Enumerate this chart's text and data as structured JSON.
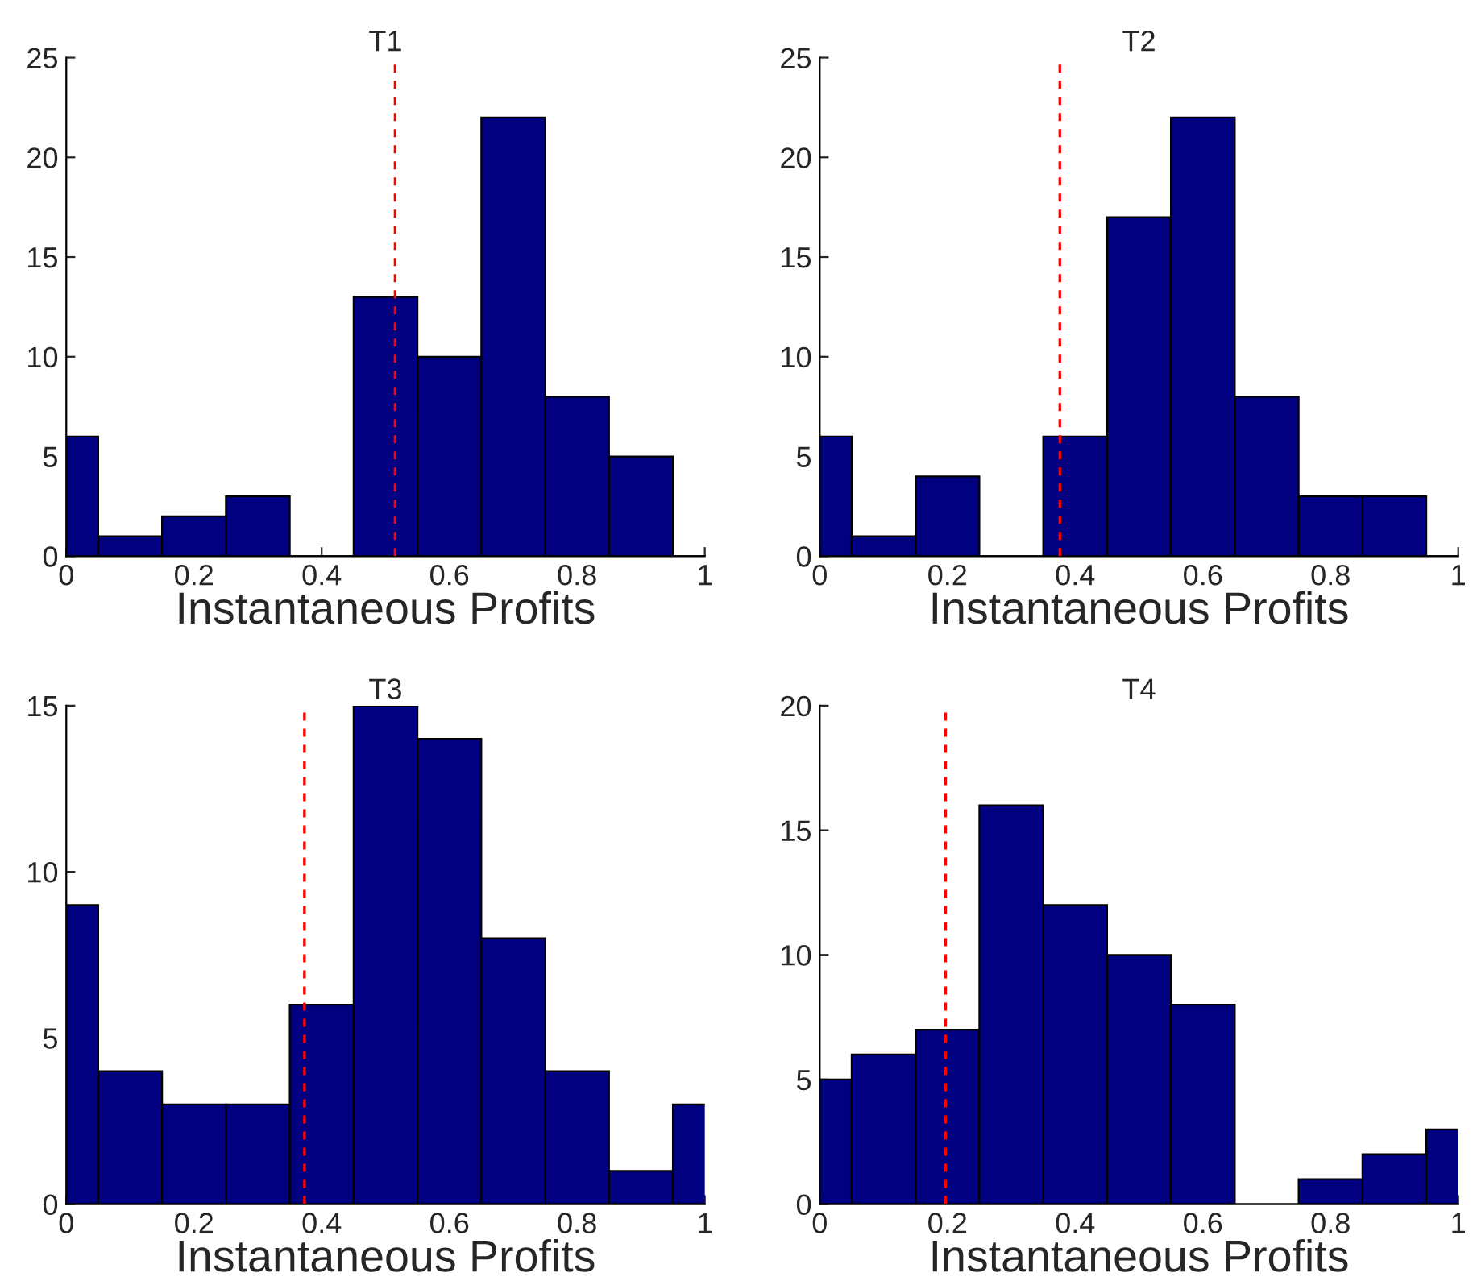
{
  "chart_data": [
    {
      "type": "histogram",
      "title": "T1",
      "xlabel": "Instantaneous Profits",
      "bins": [
        -0.05,
        0.05,
        0.15,
        0.25,
        0.35,
        0.45,
        0.55,
        0.65,
        0.75,
        0.85,
        0.95,
        1.05
      ],
      "values": [
        6,
        1,
        2,
        3,
        0,
        13,
        10,
        22,
        8,
        5,
        0
      ],
      "color": "#000080",
      "xlim": [
        0,
        1
      ],
      "xticks": [
        0,
        0.2,
        0.4,
        0.6,
        0.8,
        1
      ],
      "ylim": [
        0,
        25
      ],
      "yticks": [
        0,
        5,
        10,
        15,
        20,
        25
      ],
      "grid": false,
      "ref_lines": [
        {
          "axis": "x",
          "value": 0.515,
          "color": "#ff0000",
          "line_style": "dashed"
        }
      ]
    },
    {
      "type": "histogram",
      "title": "T2",
      "xlabel": "Instantaneous Profits",
      "bins": [
        -0.05,
        0.05,
        0.15,
        0.25,
        0.35,
        0.45,
        0.55,
        0.65,
        0.75,
        0.85,
        0.95,
        1.05
      ],
      "values": [
        6,
        1,
        4,
        0,
        6,
        17,
        22,
        8,
        3,
        3,
        0
      ],
      "color": "#000080",
      "xlim": [
        0,
        1
      ],
      "xticks": [
        0,
        0.2,
        0.4,
        0.6,
        0.8,
        1
      ],
      "ylim": [
        0,
        25
      ],
      "yticks": [
        0,
        5,
        10,
        15,
        20,
        25
      ],
      "grid": false,
      "ref_lines": [
        {
          "axis": "x",
          "value": 0.376,
          "color": "#ff0000",
          "line_style": "dashed"
        }
      ]
    },
    {
      "type": "histogram",
      "title": "T3",
      "xlabel": "Instantaneous Profits",
      "bins": [
        -0.05,
        0.05,
        0.15,
        0.25,
        0.35,
        0.45,
        0.55,
        0.65,
        0.75,
        0.85,
        0.95,
        1.05
      ],
      "values": [
        9,
        4,
        3,
        3,
        6,
        15,
        14,
        8,
        4,
        1,
        3
      ],
      "color": "#000080",
      "xlim": [
        0,
        1
      ],
      "xticks": [
        0,
        0.2,
        0.4,
        0.6,
        0.8,
        1
      ],
      "ylim": [
        0,
        15
      ],
      "yticks": [
        0,
        5,
        10,
        15
      ],
      "grid": false,
      "ref_lines": [
        {
          "axis": "x",
          "value": 0.373,
          "color": "#ff0000",
          "line_style": "dashed"
        }
      ]
    },
    {
      "type": "histogram",
      "title": "T4",
      "xlabel": "Instantaneous Profits",
      "bins": [
        -0.05,
        0.05,
        0.15,
        0.25,
        0.35,
        0.45,
        0.55,
        0.65,
        0.75,
        0.85,
        0.95,
        1.05
      ],
      "values": [
        5,
        6,
        7,
        16,
        12,
        10,
        8,
        0,
        1,
        2,
        3
      ],
      "color": "#000080",
      "xlim": [
        0,
        1
      ],
      "xticks": [
        0,
        0.2,
        0.4,
        0.6,
        0.8,
        1
      ],
      "ylim": [
        0,
        20
      ],
      "yticks": [
        0,
        5,
        10,
        15,
        20
      ],
      "grid": false,
      "ref_lines": [
        {
          "axis": "x",
          "value": 0.197,
          "color": "#ff0000",
          "line_style": "dashed"
        }
      ]
    }
  ]
}
